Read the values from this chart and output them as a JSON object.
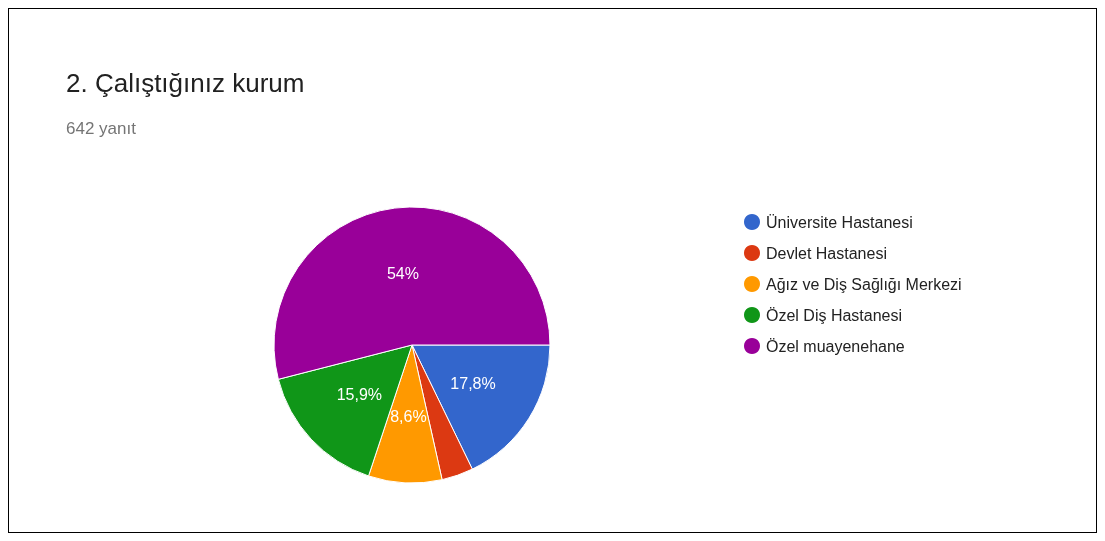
{
  "chart_data": {
    "type": "pie",
    "title": "2. Çalıştığınız kurum",
    "subtitle": "642 yanıt",
    "categories": [
      "Üniversite Hastanesi",
      "Devlet Hastanesi",
      "Ağız ve Diş Sağlığı Merkezi",
      "Özel Diş Hastanesi",
      "Özel muayenehane"
    ],
    "values": [
      17.8,
      3.7,
      8.6,
      15.9,
      54
    ],
    "colors": [
      "#3366cc",
      "#dc3912",
      "#ff9900",
      "#109618",
      "#990099"
    ],
    "value_labels": [
      "17,8%",
      null,
      "8,6%",
      "15,9%",
      "54%"
    ],
    "legend": "right"
  }
}
